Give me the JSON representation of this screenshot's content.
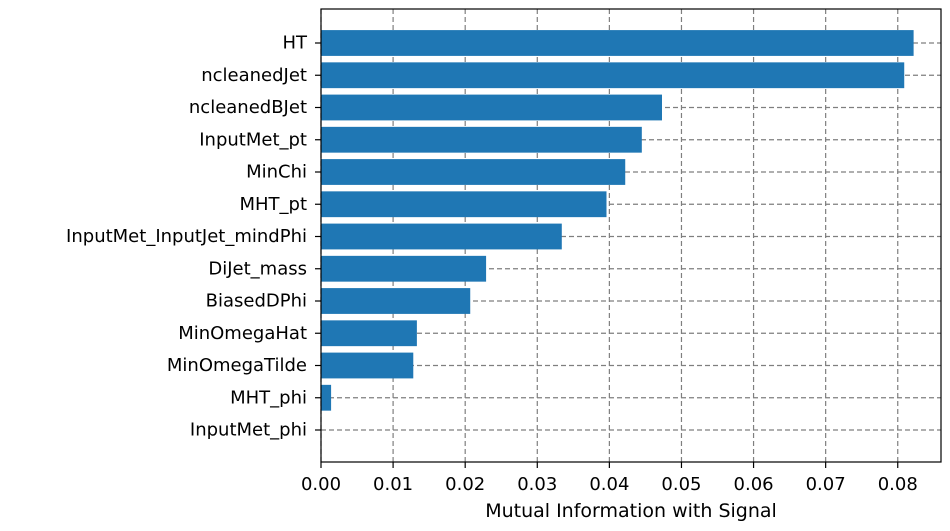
{
  "chart_data": {
    "type": "bar",
    "orientation": "horizontal",
    "categories": [
      "HT",
      "ncleanedJet",
      "ncleanedBJet",
      "InputMet_pt",
      "MinChi",
      "MHT_pt",
      "InputMet_InputJet_mindPhi",
      "DiJet_mass",
      "BiasedDPhi",
      "MinOmegaHat",
      "MinOmegaTilde",
      "MHT_phi",
      "InputMet_phi"
    ],
    "values": [
      0.0822,
      0.0809,
      0.0473,
      0.0445,
      0.0422,
      0.0396,
      0.0334,
      0.0229,
      0.0207,
      0.0133,
      0.0128,
      0.0014,
      0.0
    ],
    "xlabel": "Mutual Information with Signal",
    "ylabel": "",
    "xlim": [
      0.0,
      0.086
    ],
    "xticks": [
      "0.00",
      "0.01",
      "0.02",
      "0.03",
      "0.04",
      "0.05",
      "0.06",
      "0.07",
      "0.08"
    ],
    "xtick_values": [
      0.0,
      0.01,
      0.02,
      0.03,
      0.04,
      0.05,
      0.06,
      0.07,
      0.08
    ],
    "grid": true,
    "grid_style": "dashed",
    "bar_color": "#1f77b4",
    "grid_color": "#7f7f7f"
  }
}
